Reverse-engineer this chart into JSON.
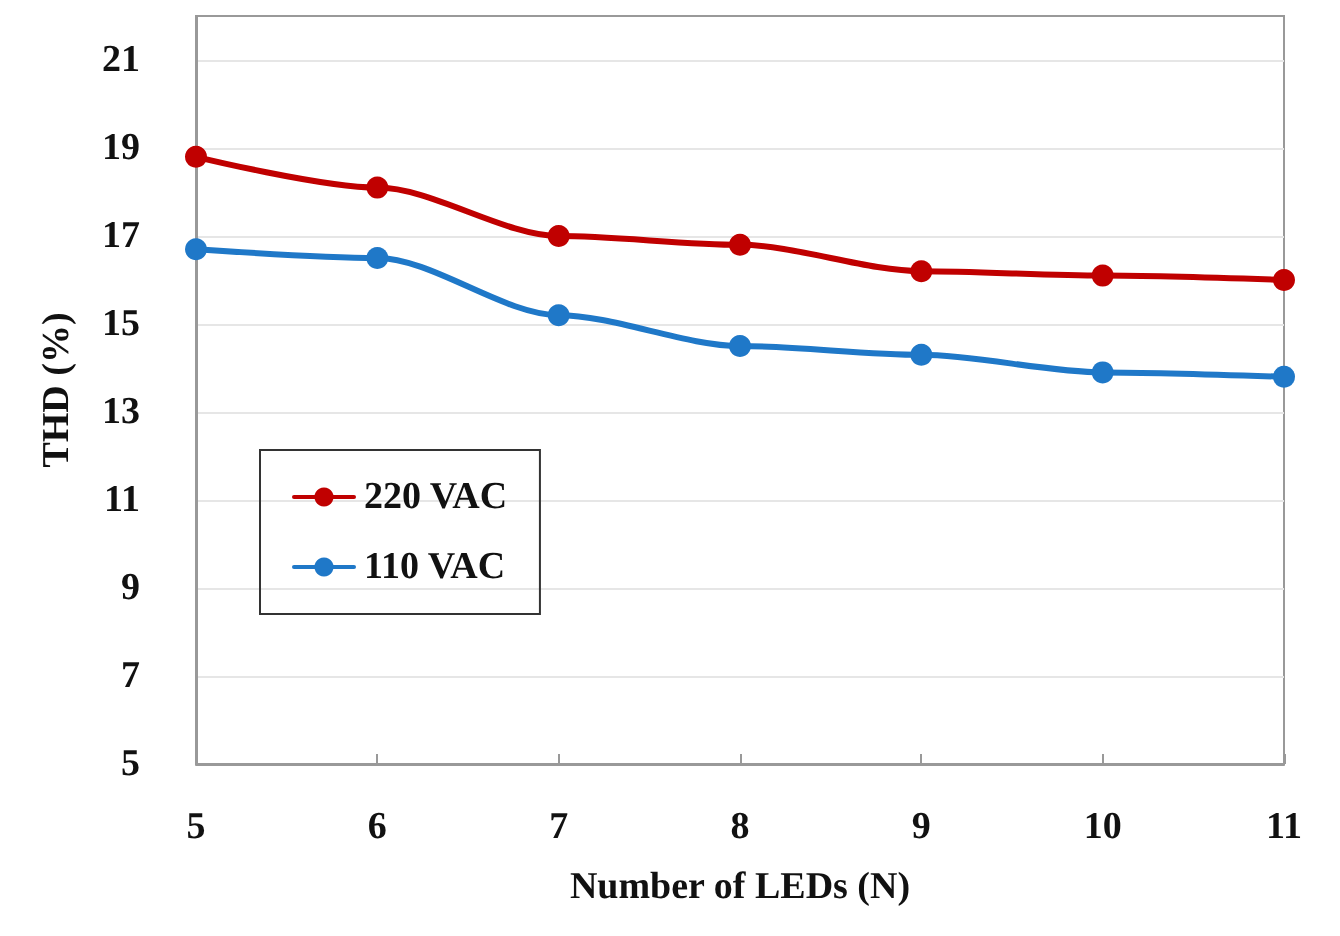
{
  "chart_data": {
    "type": "line",
    "xlabel": "Number of LEDs (N)",
    "ylabel": "THD (%)",
    "x": [
      5,
      6,
      7,
      8,
      9,
      10,
      11
    ],
    "series": [
      {
        "name": "220 VAC",
        "color": "#c00000",
        "values": [
          18.8,
          18.1,
          17.0,
          16.8,
          16.2,
          16.1,
          16.0
        ]
      },
      {
        "name": "110 VAC",
        "color": "#1f78c8",
        "values": [
          16.7,
          16.5,
          15.2,
          14.5,
          14.3,
          13.9,
          13.8
        ]
      }
    ],
    "xlim": [
      5,
      11
    ],
    "xticks": [
      5,
      6,
      7,
      8,
      9,
      10,
      11
    ],
    "ylim": [
      5,
      22
    ],
    "yticks": [
      5,
      7,
      9,
      11,
      13,
      15,
      17,
      19,
      21
    ],
    "grid": "y",
    "legend": "left",
    "marker": "circle",
    "line_style": "solid"
  }
}
